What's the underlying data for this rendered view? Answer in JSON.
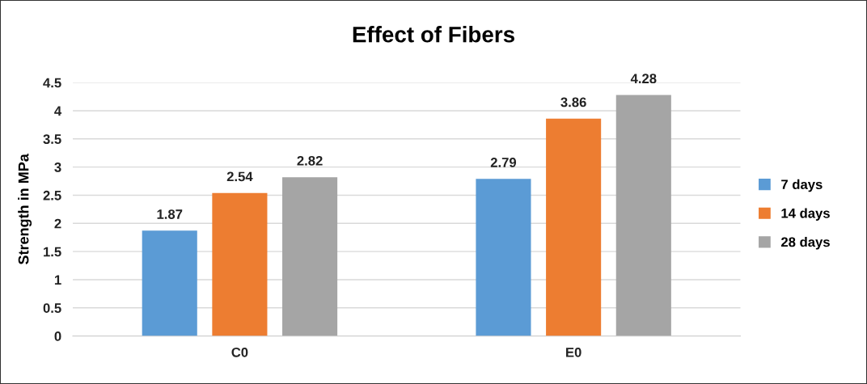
{
  "chart_data": {
    "type": "bar",
    "title": "Effect of Fibers",
    "ylabel": "Strength in MPa",
    "categories": [
      "C0",
      "E0"
    ],
    "series": [
      {
        "name": "7 days",
        "color": "#5b9bd5",
        "values": [
          1.87,
          2.79
        ]
      },
      {
        "name": "14 days",
        "color": "#ed7d31",
        "values": [
          2.54,
          3.86
        ]
      },
      {
        "name": "28 days",
        "color": "#a5a5a5",
        "values": [
          2.82,
          4.28
        ]
      }
    ],
    "ylim": [
      0,
      4.5
    ],
    "yticks": [
      0,
      0.5,
      1,
      1.5,
      2,
      2.5,
      3,
      3.5,
      4,
      4.5
    ],
    "grid": "y",
    "legend": "right",
    "data_labels": true
  }
}
